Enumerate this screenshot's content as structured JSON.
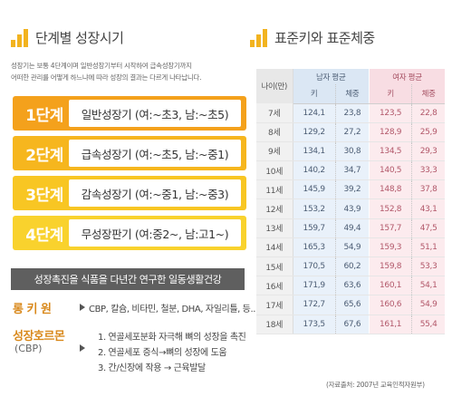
{
  "left": {
    "title": "단계별 성장시기",
    "intro_line1": "성장기는 보통 4단계이며 일반성장기부터 시작하여 급속성장기까지",
    "intro_line2": "어떠한 관리를 어떻게 하느냐에 따라 성장의 결과는 다르게 나타납니다.",
    "stages": [
      {
        "label": "1단계",
        "text": "일반성장기 (여:~초3, 남:~초5)",
        "color": "#f4a11c"
      },
      {
        "label": "2단계",
        "text": "급속성장기 (여:~초5, 남:~중1)",
        "color": "#f6b61e"
      },
      {
        "label": "3단계",
        "text": "감속성장기 (여:~중1, 남:~중3)",
        "color": "#f8c623"
      },
      {
        "label": "4단계",
        "text": "무성장판기 (여:중2~, 남:고1~)",
        "color": "#f9d22d"
      }
    ],
    "banner": "성장촉진을 식품을 다년간 연구한 일동생활건강",
    "longkiwon": {
      "label": "롱 키 원",
      "text": "CBP, 칼슘, 비타민, 철분, DHA, 자일리틀, 등..."
    },
    "cbp": {
      "label": "성장호르몬",
      "sub": "(CBP)",
      "lines": [
        "1. 연골세포분화 자극해 뼈의 성장을 촉진",
        "2. 연골세포 증식→뼈의 성장에 도움",
        "3. 간/신장에 작용 → 근육발달"
      ]
    }
  },
  "right": {
    "title": "표준키와 표준체중",
    "age_header": "나이(만)",
    "male_header": "남자 평균",
    "female_header": "여자 평균",
    "height_label": "키",
    "weight_label": "체중",
    "rows": [
      {
        "age": "7세",
        "mh": "124,1",
        "mw": "23,8",
        "fh": "123,5",
        "fw": "22,8"
      },
      {
        "age": "8세",
        "mh": "129,2",
        "mw": "27,2",
        "fh": "128,9",
        "fw": "25,9"
      },
      {
        "age": "9세",
        "mh": "134,1",
        "mw": "30,8",
        "fh": "134,5",
        "fw": "29,3"
      },
      {
        "age": "10세",
        "mh": "140,2",
        "mw": "34,7",
        "fh": "140,5",
        "fw": "33,3"
      },
      {
        "age": "11세",
        "mh": "145,9",
        "mw": "39,2",
        "fh": "148,8",
        "fw": "37,8"
      },
      {
        "age": "12세",
        "mh": "153,2",
        "mw": "43,9",
        "fh": "152,8",
        "fw": "43,1"
      },
      {
        "age": "13세",
        "mh": "159,7",
        "mw": "49,4",
        "fh": "157,7",
        "fw": "47,5"
      },
      {
        "age": "14세",
        "mh": "165,3",
        "mw": "54,9",
        "fh": "159,3",
        "fw": "51,1"
      },
      {
        "age": "15세",
        "mh": "170,5",
        "mw": "60,2",
        "fh": "159,8",
        "fw": "53,3"
      },
      {
        "age": "16세",
        "mh": "171,9",
        "mw": "63,6",
        "fh": "160,1",
        "fw": "54,1"
      },
      {
        "age": "17세",
        "mh": "172,7",
        "mw": "65,6",
        "fh": "160,6",
        "fw": "54,9"
      },
      {
        "age": "18세",
        "mh": "173,5",
        "mw": "67,6",
        "fh": "161,1",
        "fw": "55,4"
      }
    ],
    "source": "(자료출처: 2007년 교육인적자원부)"
  },
  "colors": {
    "accent": "#f2b31f",
    "orange_text": "#d9891c",
    "banner_bg": "#5f5f5f",
    "male_bg": "#e9f1fa",
    "female_bg": "#fcebee"
  },
  "icons": {
    "left_title": "bar-chart-icon",
    "right_title": "bar-chart-icon",
    "bullet": "arrow-right-icon"
  }
}
